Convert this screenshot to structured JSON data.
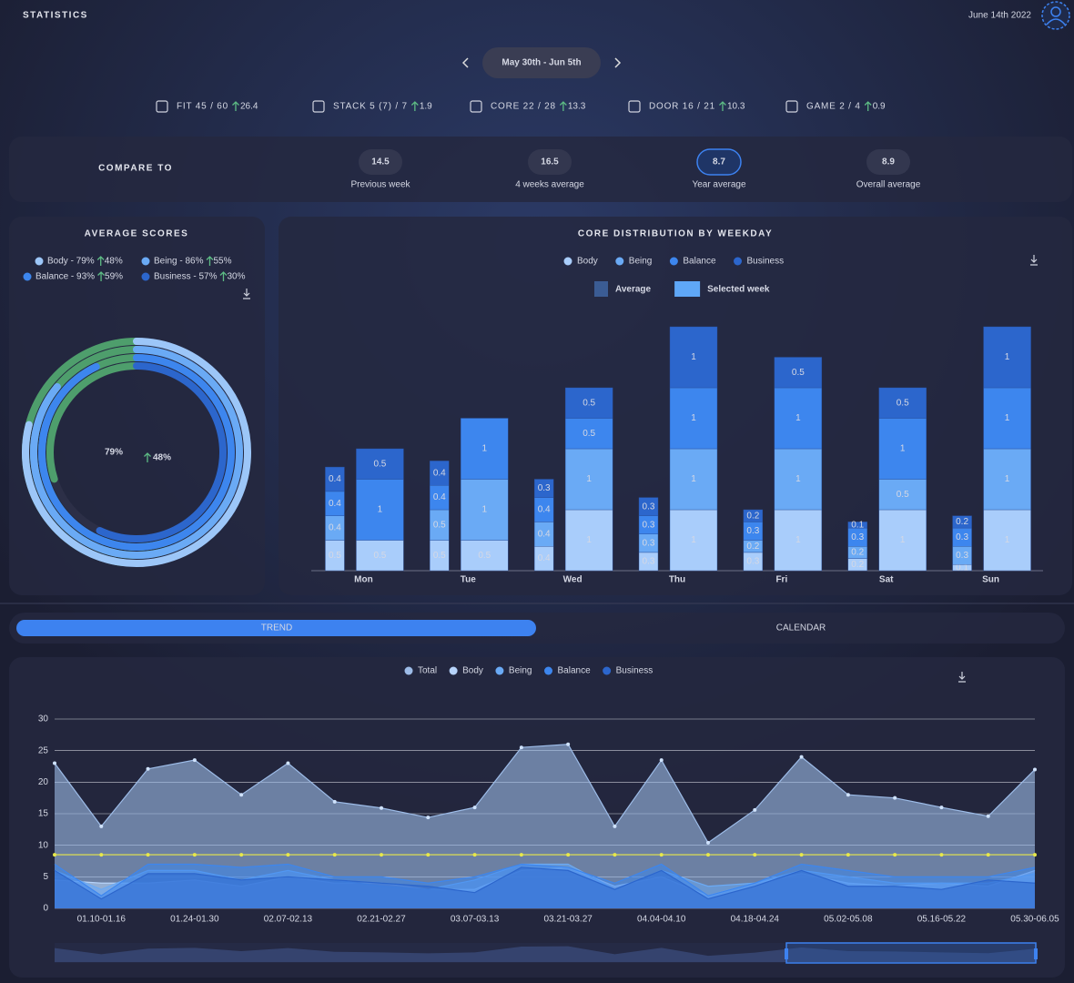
{
  "header": {
    "title": "STATISTICS",
    "date": "June 14th 2022"
  },
  "week": {
    "label": "May 30th - Jun 5th"
  },
  "metrics": [
    {
      "label": "FIT 45 / 60",
      "change": "26.4"
    },
    {
      "label": "STACK 5 (7) / 7",
      "change": "1.9"
    },
    {
      "label": "CORE 22 / 28",
      "change": "13.3"
    },
    {
      "label": "DOOR 16 / 21",
      "change": "10.3"
    },
    {
      "label": "GAME 2 / 4",
      "change": "0.9"
    }
  ],
  "compare": {
    "title": "COMPARE TO",
    "active": 2,
    "items": [
      {
        "value": "14.5",
        "label": "Previous week"
      },
      {
        "value": "16.5",
        "label": "4 weeks average"
      },
      {
        "value": "8.7",
        "label": "Year average"
      },
      {
        "value": "8.9",
        "label": "Overall average"
      }
    ]
  },
  "tabs": {
    "items": [
      "TREND",
      "CALENDAR"
    ],
    "active": 0
  },
  "chart_data": [
    {
      "type": "donut",
      "title": "AVERAGE SCORES",
      "center_value": "79%",
      "center_change": "48%",
      "change_color": "#4e9e6c",
      "rings": [
        {
          "label": "Body - 79%",
          "value": 79,
          "change": 48,
          "change_label": "48%",
          "color": "#9cc6f8"
        },
        {
          "label": "Being - 86%",
          "value": 86,
          "change": 55,
          "change_label": "55%",
          "color": "#6aaaf5"
        },
        {
          "label": "Balance - 93%",
          "value": 93,
          "change": 59,
          "change_label": "59%",
          "color": "#3d86ee"
        },
        {
          "label": "Business - 57%",
          "value": 57,
          "change": 30,
          "change_label": "30%",
          "color": "#2c66cc"
        }
      ]
    },
    {
      "type": "bar",
      "title": "CORE DISTRIBUTION BY WEEKDAY",
      "categories": [
        "Mon",
        "Tue",
        "Wed",
        "Thu",
        "Fri",
        "Sat",
        "Sun"
      ],
      "series": [
        {
          "name": "Body",
          "color": "#a9cdfb",
          "average": [
            0.5,
            0.5,
            0.4,
            0.3,
            0.3,
            0.2,
            0.1
          ],
          "selected": [
            0.5,
            0.5,
            1,
            1,
            1,
            1,
            1
          ]
        },
        {
          "name": "Being",
          "color": "#6aaaf5",
          "average": [
            0.4,
            0.5,
            0.4,
            0.3,
            0.2,
            0.2,
            0.3
          ],
          "selected": [
            0,
            1,
            1,
            1,
            1,
            0.5,
            1
          ]
        },
        {
          "name": "Balance",
          "color": "#3d86ee",
          "average": [
            0.4,
            0.4,
            0.4,
            0.3,
            0.3,
            0.3,
            0.3
          ],
          "selected": [
            1,
            1,
            0.5,
            1,
            1,
            1,
            1
          ]
        },
        {
          "name": "Business",
          "color": "#2c66cc",
          "average": [
            0.4,
            0.4,
            0.3,
            0.3,
            0.2,
            0.1,
            0.2
          ],
          "selected": [
            0.5,
            0,
            0.5,
            1,
            0.5,
            0.5,
            1
          ]
        }
      ],
      "bar_legend": [
        {
          "label": "Average",
          "color": "#3b5c94"
        },
        {
          "label": "Selected week",
          "color": "#5fa7f7"
        }
      ]
    },
    {
      "type": "area",
      "categories": [
        null,
        "01.10-01.16",
        null,
        "01.24-01.30",
        null,
        "02.07-02.13",
        null,
        "02.21-02.27",
        null,
        "03.07-03.13",
        null,
        "03.21-03.27",
        null,
        "04.04-04.10",
        null,
        "04.18-04.24",
        null,
        "05.02-05.08",
        null,
        "05.16-05.22",
        null,
        "05.30-06.05"
      ],
      "series": [
        {
          "name": "Total",
          "color": "#9dbce8",
          "values": [
            23,
            13,
            22.1,
            23.5,
            18,
            23,
            16.9,
            15.9,
            14.4,
            16,
            25.5,
            26,
            13,
            23.5,
            10.4,
            15.6,
            24,
            18,
            17.5,
            16,
            14.6,
            22
          ]
        },
        {
          "name": "Body",
          "color": "#b6d3fa",
          "values": [
            4.5,
            4,
            4,
            4.5,
            3.5,
            5,
            4,
            4,
            3,
            3,
            6,
            6.5,
            3.5,
            5,
            2,
            4,
            5.5,
            4,
            3.5,
            4,
            3.5,
            6
          ]
        },
        {
          "name": "Being",
          "color": "#6aaaf5",
          "values": [
            6,
            3,
            6,
            6,
            4.5,
            6,
            4.5,
            3.5,
            3,
            4.5,
            7,
            7,
            3,
            6,
            3.5,
            4,
            6,
            5,
            4,
            4,
            4,
            5.5
          ]
        },
        {
          "name": "Balance",
          "color": "#3d86ee",
          "values": [
            7,
            2,
            7,
            7,
            6.5,
            7,
            5,
            5,
            4,
            5,
            7,
            6.5,
            4,
            7,
            2,
            4,
            7,
            6,
            5,
            5,
            5,
            6.5
          ]
        },
        {
          "name": "Business",
          "color": "#2c66cc",
          "values": [
            6,
            1.5,
            5.5,
            5.5,
            4.5,
            5,
            4.5,
            4,
            3.5,
            2.5,
            6.5,
            6,
            3,
            6,
            1.5,
            3.5,
            6,
            3.5,
            3.5,
            3,
            4.5,
            4
          ]
        }
      ],
      "reference_line": {
        "color": "#e8e84a",
        "values": [
          8.5,
          8.5,
          8.5,
          8.5,
          8.5,
          8.5,
          8.5,
          8.5,
          8.5,
          8.5,
          8.5,
          8.5,
          8.5,
          8.5,
          8.5,
          8.5,
          8.5,
          8.5,
          8.5,
          8.5,
          8.5,
          8.5
        ]
      },
      "ylim": [
        0,
        30
      ],
      "yticks": [
        0,
        5,
        10,
        15,
        20,
        25,
        30
      ],
      "grid": true
    }
  ]
}
